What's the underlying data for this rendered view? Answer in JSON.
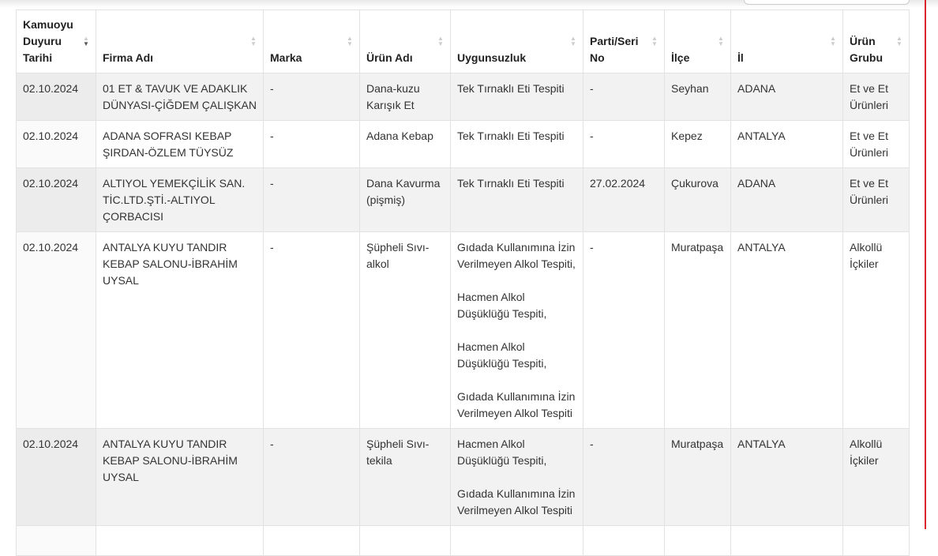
{
  "search_placeholder": "",
  "columns": [
    "Kamuoyu Duyuru Tarihi",
    "Firma Adı",
    "Marka",
    "Ürün Adı",
    "Uygunsuzluk",
    "Parti/Seri No",
    "İlçe",
    "İl",
    "Ürün Grubu"
  ],
  "rows": [
    [
      "02.10.2024",
      "01 ET & TAVUK VE ADAKLIK DÜNYASI-ÇİĞDEM ÇALIŞKAN",
      "-",
      "Dana-kuzu Karışık Et",
      "Tek Tırnaklı Eti Tespiti",
      "-",
      "Seyhan",
      "ADANA",
      "Et ve Et Ürünleri"
    ],
    [
      "02.10.2024",
      "ADANA SOFRASI KEBAP ŞIRDAN-ÖZLEM TÜYSÜZ",
      "-",
      "Adana Kebap",
      "Tek Tırnaklı Eti Tespiti",
      "-",
      "Kepez",
      "ANTALYA",
      "Et ve Et Ürünleri"
    ],
    [
      "02.10.2024",
      "ALTIYOL YEMEKÇİLİK SAN. TİC.LTD.ŞTİ.-ALTIYOL ÇORBACISI",
      "-",
      "Dana Kavurma (pişmiş)",
      "Tek Tırnaklı Eti Tespiti",
      "27.02.2024",
      "Çukurova",
      "ADANA",
      "Et ve Et Ürünleri"
    ],
    [
      "02.10.2024",
      "ANTALYA KUYU TANDIR KEBAP SALONU-İBRAHİM UYSAL",
      "-",
      "Şüpheli Sıvı-alkol",
      "Gıdada Kullanımına İzin Verilmeyen Alkol Tespiti,\n\nHacmen Alkol Düşüklüğü Tespiti,\n\nHacmen Alkol Düşüklüğü Tespiti,\n\nGıdada Kullanımına İzin Verilmeyen Alkol Tespiti",
      "-",
      "Muratpaşa",
      "ANTALYA",
      "Alkollü İçkiler"
    ],
    [
      "02.10.2024",
      "ANTALYA KUYU TANDIR KEBAP SALONU-İBRAHİM UYSAL",
      "-",
      "Şüpheli Sıvı-tekila",
      "Hacmen Alkol Düşüklüğü Tespiti,\n\nGıdada Kullanımına İzin Verilmeyen Alkol Tespiti",
      "-",
      "Muratpaşa",
      "ANTALYA",
      "Alkollü İçkiler"
    ],
    [
      "",
      "",
      "",
      "",
      "",
      "",
      "",
      "",
      ""
    ]
  ],
  "sort": {
    "column": 0,
    "direction": "desc"
  },
  "colors": {
    "row_alt": "#f2f2f2",
    "accent_line": "#d9262c"
  }
}
